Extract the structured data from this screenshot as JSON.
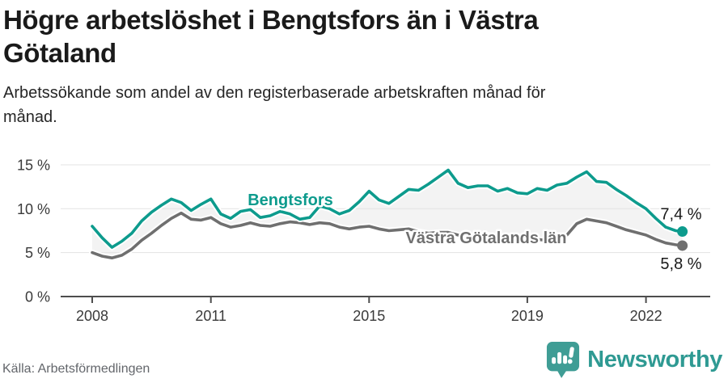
{
  "header": {
    "title_line1": "Högre arbetslöshet i Bengtsfors än i Västra",
    "title_line2": "Götaland",
    "subtitle_line1": "Arbetssökande som andel av den registerbaserade arbetskraften månad för",
    "subtitle_line2": "månad."
  },
  "chart_data": {
    "type": "line",
    "title": "Högre arbetslöshet i Bengtsfors än i Västra Götaland",
    "subtitle": "Arbetssökande som andel av den registerbaserade arbetskraften månad för månad.",
    "x_unit": "decimal_year",
    "xlim": [
      2008,
      2023
    ],
    "ylim": [
      0,
      16
    ],
    "grid": "horizontal",
    "legend_position": "inline-labels",
    "x": [
      2008.0,
      2008.25,
      2008.5,
      2008.75,
      2009.0,
      2009.25,
      2009.5,
      2009.75,
      2010.0,
      2010.25,
      2010.5,
      2010.75,
      2011.0,
      2011.25,
      2011.5,
      2011.75,
      2012.0,
      2012.25,
      2012.5,
      2012.75,
      2013.0,
      2013.25,
      2013.5,
      2013.75,
      2014.0,
      2014.25,
      2014.5,
      2014.75,
      2015.0,
      2015.25,
      2015.5,
      2015.75,
      2016.0,
      2016.25,
      2016.5,
      2016.75,
      2017.0,
      2017.25,
      2017.5,
      2017.75,
      2018.0,
      2018.25,
      2018.5,
      2018.75,
      2019.0,
      2019.25,
      2019.5,
      2019.75,
      2020.0,
      2020.25,
      2020.5,
      2020.75,
      2021.0,
      2021.25,
      2021.5,
      2021.75,
      2022.0,
      2022.25,
      2022.5,
      2022.75,
      2022.92
    ],
    "series": [
      {
        "name": "Bengtsfors",
        "color": "#0d9b8d",
        "end_label": "7,4 %",
        "end_value": 7.4,
        "values": [
          8.0,
          6.7,
          5.6,
          6.3,
          7.2,
          8.6,
          9.6,
          10.4,
          11.1,
          10.7,
          9.8,
          10.5,
          11.1,
          9.4,
          8.9,
          9.7,
          9.9,
          9.0,
          9.2,
          9.7,
          9.4,
          8.8,
          9.0,
          10.3,
          10.0,
          9.4,
          9.8,
          10.8,
          12.0,
          11.0,
          10.6,
          11.4,
          12.2,
          12.1,
          12.8,
          13.6,
          14.4,
          12.9,
          12.4,
          12.6,
          12.6,
          12.0,
          12.3,
          11.8,
          11.7,
          12.3,
          12.1,
          12.7,
          12.9,
          13.6,
          14.2,
          13.1,
          13.0,
          12.2,
          11.5,
          10.7,
          10.0,
          8.9,
          7.9,
          7.5,
          7.4
        ]
      },
      {
        "name": "Västra Götalands län",
        "color": "#6f6f6f",
        "end_label": "5,8 %",
        "end_value": 5.8,
        "values": [
          5.0,
          4.6,
          4.4,
          4.7,
          5.4,
          6.4,
          7.2,
          8.1,
          8.9,
          9.5,
          8.8,
          8.7,
          9.0,
          8.3,
          7.9,
          8.1,
          8.4,
          8.1,
          8.0,
          8.3,
          8.5,
          8.4,
          8.2,
          8.4,
          8.3,
          7.9,
          7.7,
          7.9,
          8.0,
          7.7,
          7.5,
          7.6,
          7.7,
          7.4,
          7.2,
          7.3,
          7.3,
          7.0,
          6.9,
          7.0,
          7.0,
          6.7,
          6.6,
          6.6,
          6.7,
          6.5,
          6.4,
          6.6,
          7.0,
          8.3,
          8.8,
          8.6,
          8.4,
          8.0,
          7.6,
          7.3,
          7.0,
          6.5,
          6.1,
          5.9,
          5.8
        ]
      }
    ],
    "fill_between_color": "#f3f3f3",
    "y_ticks": [
      {
        "value": 0,
        "label": "0 %"
      },
      {
        "value": 5,
        "label": "5 %"
      },
      {
        "value": 10,
        "label": "10 %"
      },
      {
        "value": 15,
        "label": "15 %"
      }
    ],
    "x_ticks": [
      {
        "value": 2008,
        "label": "2008"
      },
      {
        "value": 2011,
        "label": "2011"
      },
      {
        "value": 2015,
        "label": "2015"
      },
      {
        "value": 2019,
        "label": "2019"
      },
      {
        "value": 2022,
        "label": "2022"
      }
    ]
  },
  "footer": {
    "source": "Källa: Arbetsförmedlingen",
    "brand": "Newsworthy"
  },
  "colors": {
    "accent_teal": "#0d9b8d",
    "series_gray": "#6f6f6f",
    "brand_teal": "#2f9a93",
    "fill_band": "#f3f3f3"
  }
}
